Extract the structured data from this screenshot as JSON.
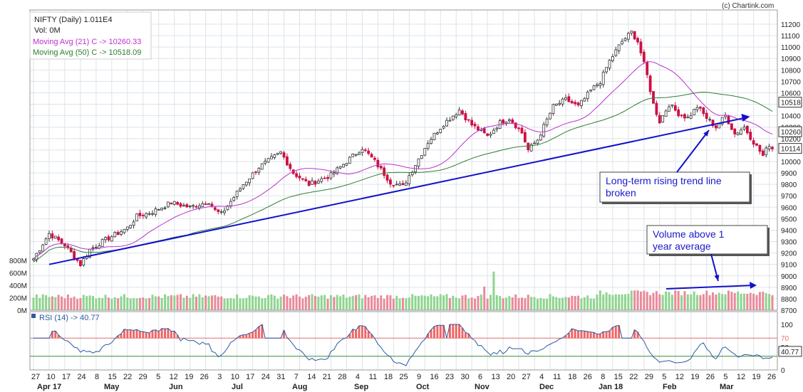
{
  "header": {
    "title": "NIFTY (Daily) 1.011E4",
    "volume": "Vol: 0M",
    "ma21": "Moving Avg (21) C -> 10260.33",
    "ma50": "Moving Avg (50) C -> 10518.09",
    "copyright": "(c) Chartink.com",
    "rsi_label": "RSI (14) -> 40.77"
  },
  "colors": {
    "up": "#ffffff",
    "down": "#cc1144",
    "ma21": "#bb33cc",
    "ma50": "#2e7d32",
    "trend": "#1111cc",
    "vol_up": "#8fd48f",
    "vol_down": "#e98a9a",
    "grid": "#dde3ea",
    "rsi_line": "#2b5aa0",
    "rsi_fill": "#ee6666"
  },
  "chart_data": {
    "type": "candlestick",
    "price_axis": {
      "min": 8700,
      "max": 11200,
      "step": 100
    },
    "price_ticks": [
      "11200",
      "11100",
      "11000",
      "10900",
      "10800",
      "10700",
      "10600",
      "10500",
      "10400",
      "10300",
      "10200",
      "10100",
      "10000",
      "9900",
      "9800",
      "9700",
      "9600",
      "9500",
      "9400",
      "9300",
      "9200",
      "9100",
      "9000",
      "8900",
      "8800",
      "8700"
    ],
    "price_markers": [
      {
        "label": "10518",
        "value": 10518
      },
      {
        "label": "10260",
        "value": 10260
      },
      {
        "label": "10114",
        "value": 10114
      }
    ],
    "volume_axis": {
      "max": 800,
      "ticks": [
        "800M",
        "600M",
        "400M",
        "200M",
        "0M"
      ]
    },
    "rsi_axis": {
      "ticks": [
        "100",
        "70",
        "50",
        "0"
      ],
      "overbought": 70,
      "oversold": 30,
      "last_label": "40.77",
      "last": 40.77
    },
    "x_day_labels": [
      "27",
      "10",
      "17",
      "24",
      "8",
      "15",
      "22",
      "29",
      "5",
      "12",
      "19",
      "26",
      "3",
      "10",
      "17",
      "24",
      "31",
      "7",
      "14",
      "21",
      "28",
      "4",
      "11",
      "18",
      "25",
      "9",
      "16",
      "23",
      "30",
      "6",
      "13",
      "20",
      "27",
      "4",
      "11",
      "18",
      "26",
      "8",
      "15",
      "22",
      "29",
      "5",
      "12",
      "19",
      "26",
      "5",
      "12",
      "19",
      "26"
    ],
    "x_month_labels": [
      "Apr 17",
      "May",
      "Jun",
      "Jul",
      "Aug",
      "Sep",
      "Oct",
      "Nov",
      "Dec",
      "Jan 18",
      "Feb",
      "Mar"
    ],
    "keypoints": [
      {
        "i": 0,
        "c": 9150
      },
      {
        "i": 5,
        "c": 9370
      },
      {
        "i": 10,
        "c": 9270
      },
      {
        "i": 15,
        "c": 9100
      },
      {
        "i": 18,
        "c": 9230
      },
      {
        "i": 22,
        "c": 9300
      },
      {
        "i": 30,
        "c": 9420
      },
      {
        "i": 33,
        "c": 9520
      },
      {
        "i": 38,
        "c": 9560
      },
      {
        "i": 44,
        "c": 9640
      },
      {
        "i": 50,
        "c": 9600
      },
      {
        "i": 56,
        "c": 9650
      },
      {
        "i": 58,
        "c": 9570
      },
      {
        "i": 60,
        "c": 9540
      },
      {
        "i": 67,
        "c": 9800
      },
      {
        "i": 72,
        "c": 9950
      },
      {
        "i": 79,
        "c": 10080
      },
      {
        "i": 83,
        "c": 9900
      },
      {
        "i": 88,
        "c": 9800
      },
      {
        "i": 95,
        "c": 9880
      },
      {
        "i": 100,
        "c": 10000
      },
      {
        "i": 105,
        "c": 10120
      },
      {
        "i": 109,
        "c": 10000
      },
      {
        "i": 114,
        "c": 9820
      },
      {
        "i": 118,
        "c": 9780
      },
      {
        "i": 126,
        "c": 10170
      },
      {
        "i": 131,
        "c": 10330
      },
      {
        "i": 136,
        "c": 10450
      },
      {
        "i": 140,
        "c": 10320
      },
      {
        "i": 145,
        "c": 10220
      },
      {
        "i": 149,
        "c": 10340
      },
      {
        "i": 152,
        "c": 10380
      },
      {
        "i": 156,
        "c": 10250
      },
      {
        "i": 158,
        "c": 10100
      },
      {
        "i": 161,
        "c": 10190
      },
      {
        "i": 166,
        "c": 10480
      },
      {
        "i": 170,
        "c": 10540
      },
      {
        "i": 174,
        "c": 10480
      },
      {
        "i": 178,
        "c": 10620
      },
      {
        "i": 181,
        "c": 10700
      },
      {
        "i": 184,
        "c": 10880
      },
      {
        "i": 188,
        "c": 11050
      },
      {
        "i": 191,
        "c": 11130
      },
      {
        "i": 193,
        "c": 11050
      },
      {
        "i": 196,
        "c": 10750
      },
      {
        "i": 198,
        "c": 10500
      },
      {
        "i": 200,
        "c": 10350
      },
      {
        "i": 203,
        "c": 10500
      },
      {
        "i": 206,
        "c": 10420
      },
      {
        "i": 209,
        "c": 10380
      },
      {
        "i": 212,
        "c": 10480
      },
      {
        "i": 215,
        "c": 10380
      },
      {
        "i": 218,
        "c": 10300
      },
      {
        "i": 221,
        "c": 10400
      },
      {
        "i": 224,
        "c": 10240
      },
      {
        "i": 227,
        "c": 10300
      },
      {
        "i": 230,
        "c": 10170
      },
      {
        "i": 233,
        "c": 10050
      },
      {
        "i": 235,
        "c": 10150
      },
      {
        "i": 236,
        "c": 10114
      }
    ],
    "trendline": {
      "from": {
        "i": 5,
        "v": 9100
      },
      "to": {
        "i": 227,
        "v": 10380
      }
    },
    "annotations": [
      {
        "text": [
          "Long-term rising trend line",
          "broken"
        ]
      },
      {
        "text": [
          "Volume above 1",
          "year average"
        ]
      }
    ]
  }
}
